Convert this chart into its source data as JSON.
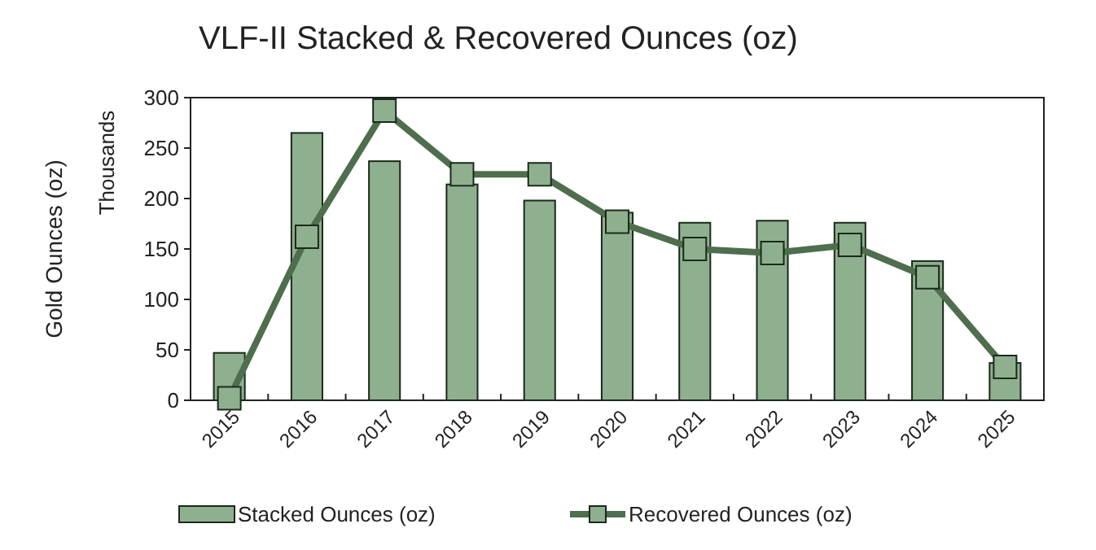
{
  "chart_data": {
    "type": "bar",
    "title": "VLF-II Stacked & Recovered Ounces (oz)",
    "ylabel": "Gold Ounces (oz)",
    "annotations": [
      "Thousands"
    ],
    "categories": [
      "2015",
      "2016",
      "2017",
      "2018",
      "2019",
      "2020",
      "2021",
      "2022",
      "2023",
      "2024",
      "2025"
    ],
    "series": [
      {
        "name": "Stacked Ounces (oz)",
        "color": "#8fb08f",
        "values": [
          47,
          265,
          237,
          214,
          198,
          186,
          176,
          178,
          176,
          138,
          37
        ]
      },
      {
        "name": "Recovered Ounces (oz)",
        "type": "line",
        "color": "#4e6e4e",
        "marker": "square",
        "values": [
          2,
          162,
          287,
          224,
          224,
          177,
          150,
          146,
          154,
          122,
          33
        ]
      }
    ],
    "ylim": [
      0,
      300
    ],
    "yticks": [
      0,
      50,
      100,
      150,
      200,
      250,
      300
    ],
    "grid": false,
    "legend": "bottom"
  }
}
